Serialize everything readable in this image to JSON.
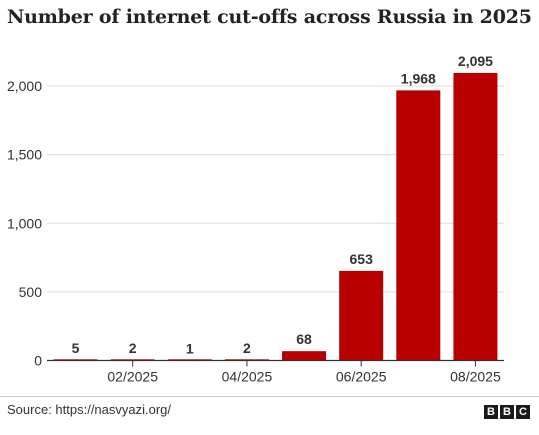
{
  "chart_data": {
    "type": "bar",
    "title": "Number of internet cut-offs across Russia in 2025",
    "categories": [
      "01/2025",
      "02/2025",
      "03/2025",
      "04/2025",
      "05/2025",
      "06/2025",
      "07/2025",
      "08/2025"
    ],
    "values": [
      5,
      2,
      1,
      2,
      68,
      653,
      1968,
      2095
    ],
    "data_labels": [
      "5",
      "2",
      "1",
      "2",
      "68",
      "653",
      "1,968",
      "2,095"
    ],
    "x_tick_labels": [
      "02/2025",
      "04/2025",
      "06/2025",
      "08/2025"
    ],
    "y_ticks": [
      0,
      500,
      1000,
      1500,
      2000
    ],
    "y_tick_labels": [
      "0",
      "500",
      "1,000",
      "1,500",
      "2,000"
    ],
    "ylim": [
      0,
      2200
    ],
    "xlabel": "",
    "ylabel": "",
    "grid": true,
    "bar_color": "#b80000",
    "grid_color": "#dcdcdc",
    "axis_color": "#333333"
  },
  "footer": {
    "source": "Source: https://nasvyazi.org/",
    "logo_letters": [
      "B",
      "B",
      "C"
    ]
  }
}
